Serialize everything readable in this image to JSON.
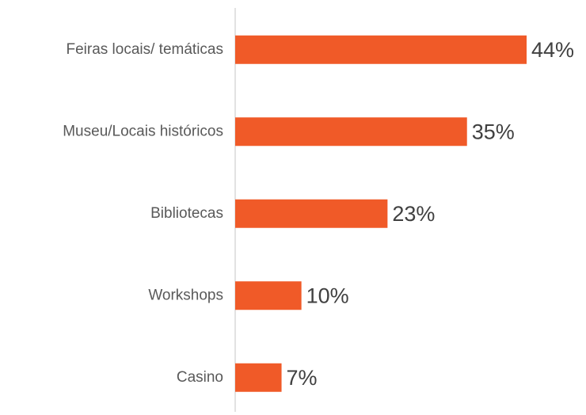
{
  "chart_data": {
    "type": "barh",
    "categories": [
      "Feiras locais/ temáticas",
      "Museu/Locais históricos",
      "Bibliotecas",
      "Workshops",
      "Casino"
    ],
    "values": [
      44,
      35,
      23,
      10,
      7
    ],
    "value_labels": [
      "44%",
      "35%",
      "23%",
      "10%",
      "7%"
    ],
    "color": "#f05a28"
  }
}
